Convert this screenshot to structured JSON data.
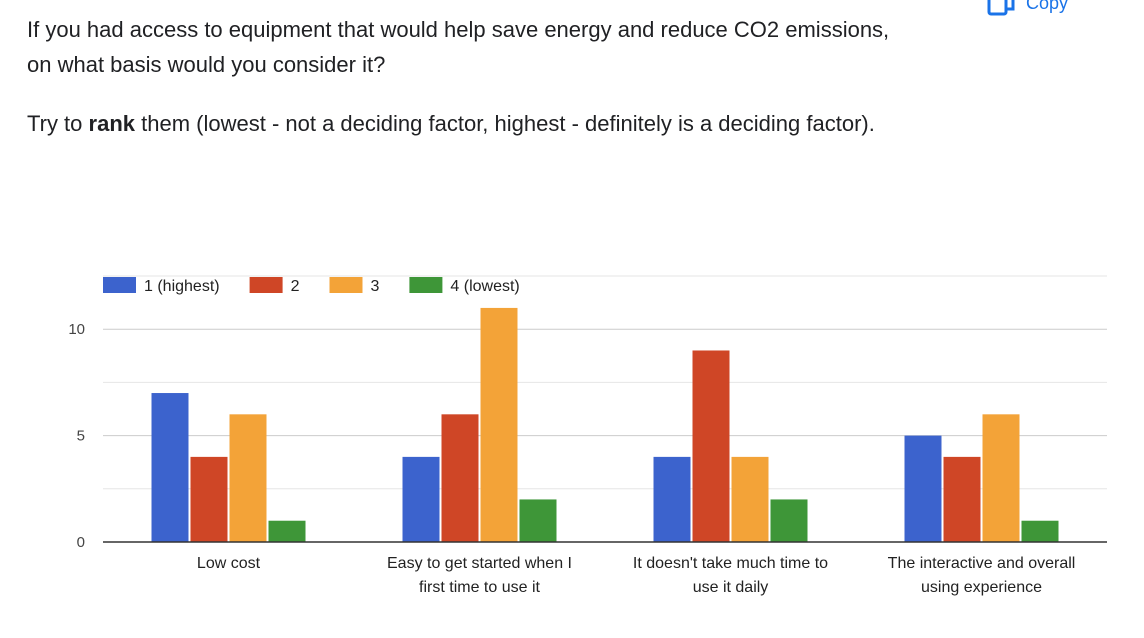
{
  "question": {
    "text": "If you had access to equipment that would help save energy and reduce CO2 emissions, on what basis would you consider it?"
  },
  "instruction": {
    "before": "Try to ",
    "bold": "rank",
    "after": " them (lowest - not a deciding factor, highest - definitely is a deciding factor)."
  },
  "copy": {
    "label": "Copy",
    "icon": "copy-icon",
    "color": "#1a73e8"
  },
  "chart_data": {
    "type": "bar",
    "categories": [
      [
        "Low cost"
      ],
      [
        "Easy to get started when I",
        "first time to use it"
      ],
      [
        "It doesn't take much time to",
        "use it daily"
      ],
      [
        "The interactive and overall",
        "using experience"
      ]
    ],
    "series": [
      {
        "name": "1 (highest)",
        "color": "#3c63cd",
        "values": [
          7,
          4,
          4,
          5
        ]
      },
      {
        "name": "2",
        "color": "#cf4626",
        "values": [
          4,
          6,
          9,
          4
        ]
      },
      {
        "name": "3",
        "color": "#f3a338",
        "values": [
          6,
          11,
          4,
          6
        ]
      },
      {
        "name": "4 (lowest)",
        "color": "#3e9638",
        "values": [
          1,
          2,
          2,
          1
        ]
      }
    ],
    "ylim": [
      0,
      12.5
    ],
    "yticks": [
      0,
      5,
      10
    ],
    "gridlines": [
      2.5,
      5,
      7.5,
      10,
      12.5
    ],
    "grid": true,
    "legend": "top-left"
  }
}
